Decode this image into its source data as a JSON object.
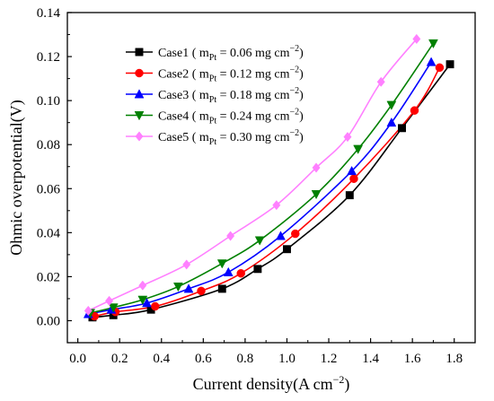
{
  "chart_data": {
    "type": "line",
    "xlabel": "Current density(A cm⁻²)",
    "ylabel": "Ohmic overpotential(V)",
    "xlim": [
      -0.05,
      1.9
    ],
    "ylim": [
      -0.01,
      0.14
    ],
    "x_ticks": [
      0.0,
      0.2,
      0.4,
      0.6,
      0.8,
      1.0,
      1.2,
      1.4,
      1.6,
      1.8
    ],
    "x_tick_labels": [
      "0.0",
      "0.2",
      "0.4",
      "0.6",
      "0.8",
      "1.0",
      "1.2",
      "1.4",
      "1.6",
      "1.8"
    ],
    "y_ticks": [
      0.0,
      0.02,
      0.04,
      0.06,
      0.08,
      0.1,
      0.12,
      0.14
    ],
    "y_tick_labels": [
      "0.00",
      "0.02",
      "0.04",
      "0.06",
      "0.08",
      "0.10",
      "0.12",
      "0.14"
    ],
    "legend_position": "top-left",
    "grid": false,
    "series": [
      {
        "name": "Case1",
        "legend_label": "Case1 ( m",
        "legend_sub": "Pt",
        "legend_value": " = 0.06 mg cm",
        "legend_sup": "−2",
        "legend_end": ")",
        "color": "#000000",
        "marker": "square",
        "x": [
          0.07,
          0.17,
          0.35,
          0.69,
          0.86,
          1.0,
          1.3,
          1.55,
          1.78
        ],
        "y": [
          0.0015,
          0.0025,
          0.005,
          0.0145,
          0.0235,
          0.0325,
          0.057,
          0.0875,
          0.1165
        ]
      },
      {
        "name": "Case2",
        "legend_label": "Case2 ( m",
        "legend_sub": "Pt",
        "legend_value": " = 0.12 mg cm",
        "legend_sup": "−2",
        "legend_end": ")",
        "color": "#ff0000",
        "marker": "circle",
        "x": [
          0.08,
          0.18,
          0.37,
          0.59,
          0.78,
          1.04,
          1.32,
          1.61,
          1.73
        ],
        "y": [
          0.002,
          0.004,
          0.0065,
          0.0135,
          0.0215,
          0.0395,
          0.0645,
          0.0955,
          0.115
        ]
      },
      {
        "name": "Case3",
        "legend_label": "Case3 ( m",
        "legend_sub": "Pt",
        "legend_value": " = 0.18 mg cm",
        "legend_sup": "−2",
        "legend_end": ")",
        "color": "#0000ff",
        "marker": "triangle-up",
        "x": [
          0.05,
          0.16,
          0.33,
          0.53,
          0.72,
          0.97,
          1.31,
          1.5,
          1.69
        ],
        "y": [
          0.003,
          0.005,
          0.008,
          0.0145,
          0.022,
          0.0385,
          0.068,
          0.09,
          0.1175
        ]
      },
      {
        "name": "Case4",
        "legend_label": "Case4 ( m",
        "legend_sub": "Pt",
        "legend_value": " = 0.24 mg cm",
        "legend_sup": "−2",
        "legend_end": ")",
        "color": "#008000",
        "marker": "triangle-down",
        "x": [
          0.06,
          0.17,
          0.31,
          0.48,
          0.69,
          0.87,
          1.14,
          1.34,
          1.5,
          1.7
        ],
        "y": [
          0.0035,
          0.006,
          0.0095,
          0.0155,
          0.026,
          0.0365,
          0.0575,
          0.078,
          0.098,
          0.126
        ]
      },
      {
        "name": "Case5",
        "legend_label": "Case5 ( m",
        "legend_sub": "Pt",
        "legend_value": " = 0.30 mg cm",
        "legend_sup": "−2",
        "legend_end": ")",
        "color": "#ff80ff",
        "marker": "diamond",
        "x": [
          0.05,
          0.15,
          0.31,
          0.52,
          0.73,
          0.95,
          1.14,
          1.29,
          1.45,
          1.62
        ],
        "y": [
          0.0045,
          0.009,
          0.016,
          0.0255,
          0.0385,
          0.0525,
          0.0695,
          0.0835,
          0.1085,
          0.128
        ]
      }
    ]
  }
}
